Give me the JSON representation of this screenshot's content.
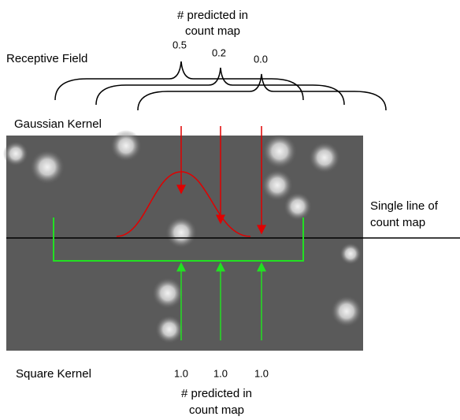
{
  "top_label": {
    "lines": [
      "# predicted in",
      "count map"
    ]
  },
  "receptive_field": "Receptive Field",
  "gaussian_values": [
    "0.5",
    "0.2",
    "0.0"
  ],
  "gaussian_kernel": "Gaussian Kernel",
  "single_line": {
    "lines": [
      "Single line of",
      "count map"
    ]
  },
  "square_kernel": "Square Kernel",
  "square_values": [
    "1.0",
    "1.0",
    "1.0"
  ],
  "bottom_label": {
    "lines": [
      "# predicted in",
      "count map"
    ]
  }
}
